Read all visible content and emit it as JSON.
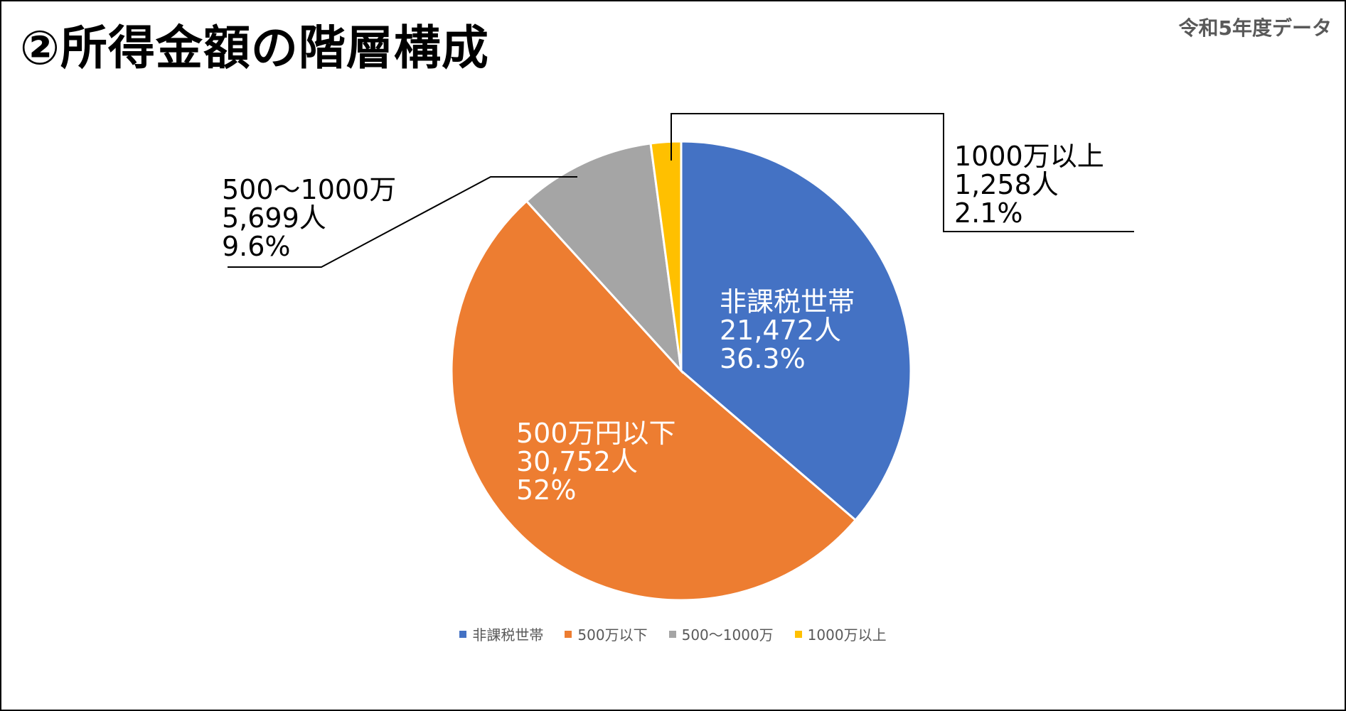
{
  "title": "②所得金額の階層構成",
  "subtitle": "令和5年度データ",
  "chart_data": {
    "type": "pie",
    "title": "",
    "categories": [
      "非課税世帯",
      "500万以下",
      "500～1000万",
      "1000万以上"
    ],
    "slice_labels": [
      "非課税世帯",
      "500万円以下",
      "500～1000万",
      "1000万以上"
    ],
    "values": [
      21472,
      30752,
      5699,
      1258
    ],
    "value_labels": [
      "21,472人",
      "30,752人",
      "5,699人",
      "1,258人"
    ],
    "percent_labels": [
      "36.3%",
      "52%",
      "9.6%",
      "2.1%"
    ],
    "colors": [
      "#4472C4",
      "#ED7D31",
      "#A5A5A5",
      "#FFC000"
    ],
    "legend_position": "bottom",
    "start_angle": "12-o'clock",
    "direction": "clockwise"
  }
}
